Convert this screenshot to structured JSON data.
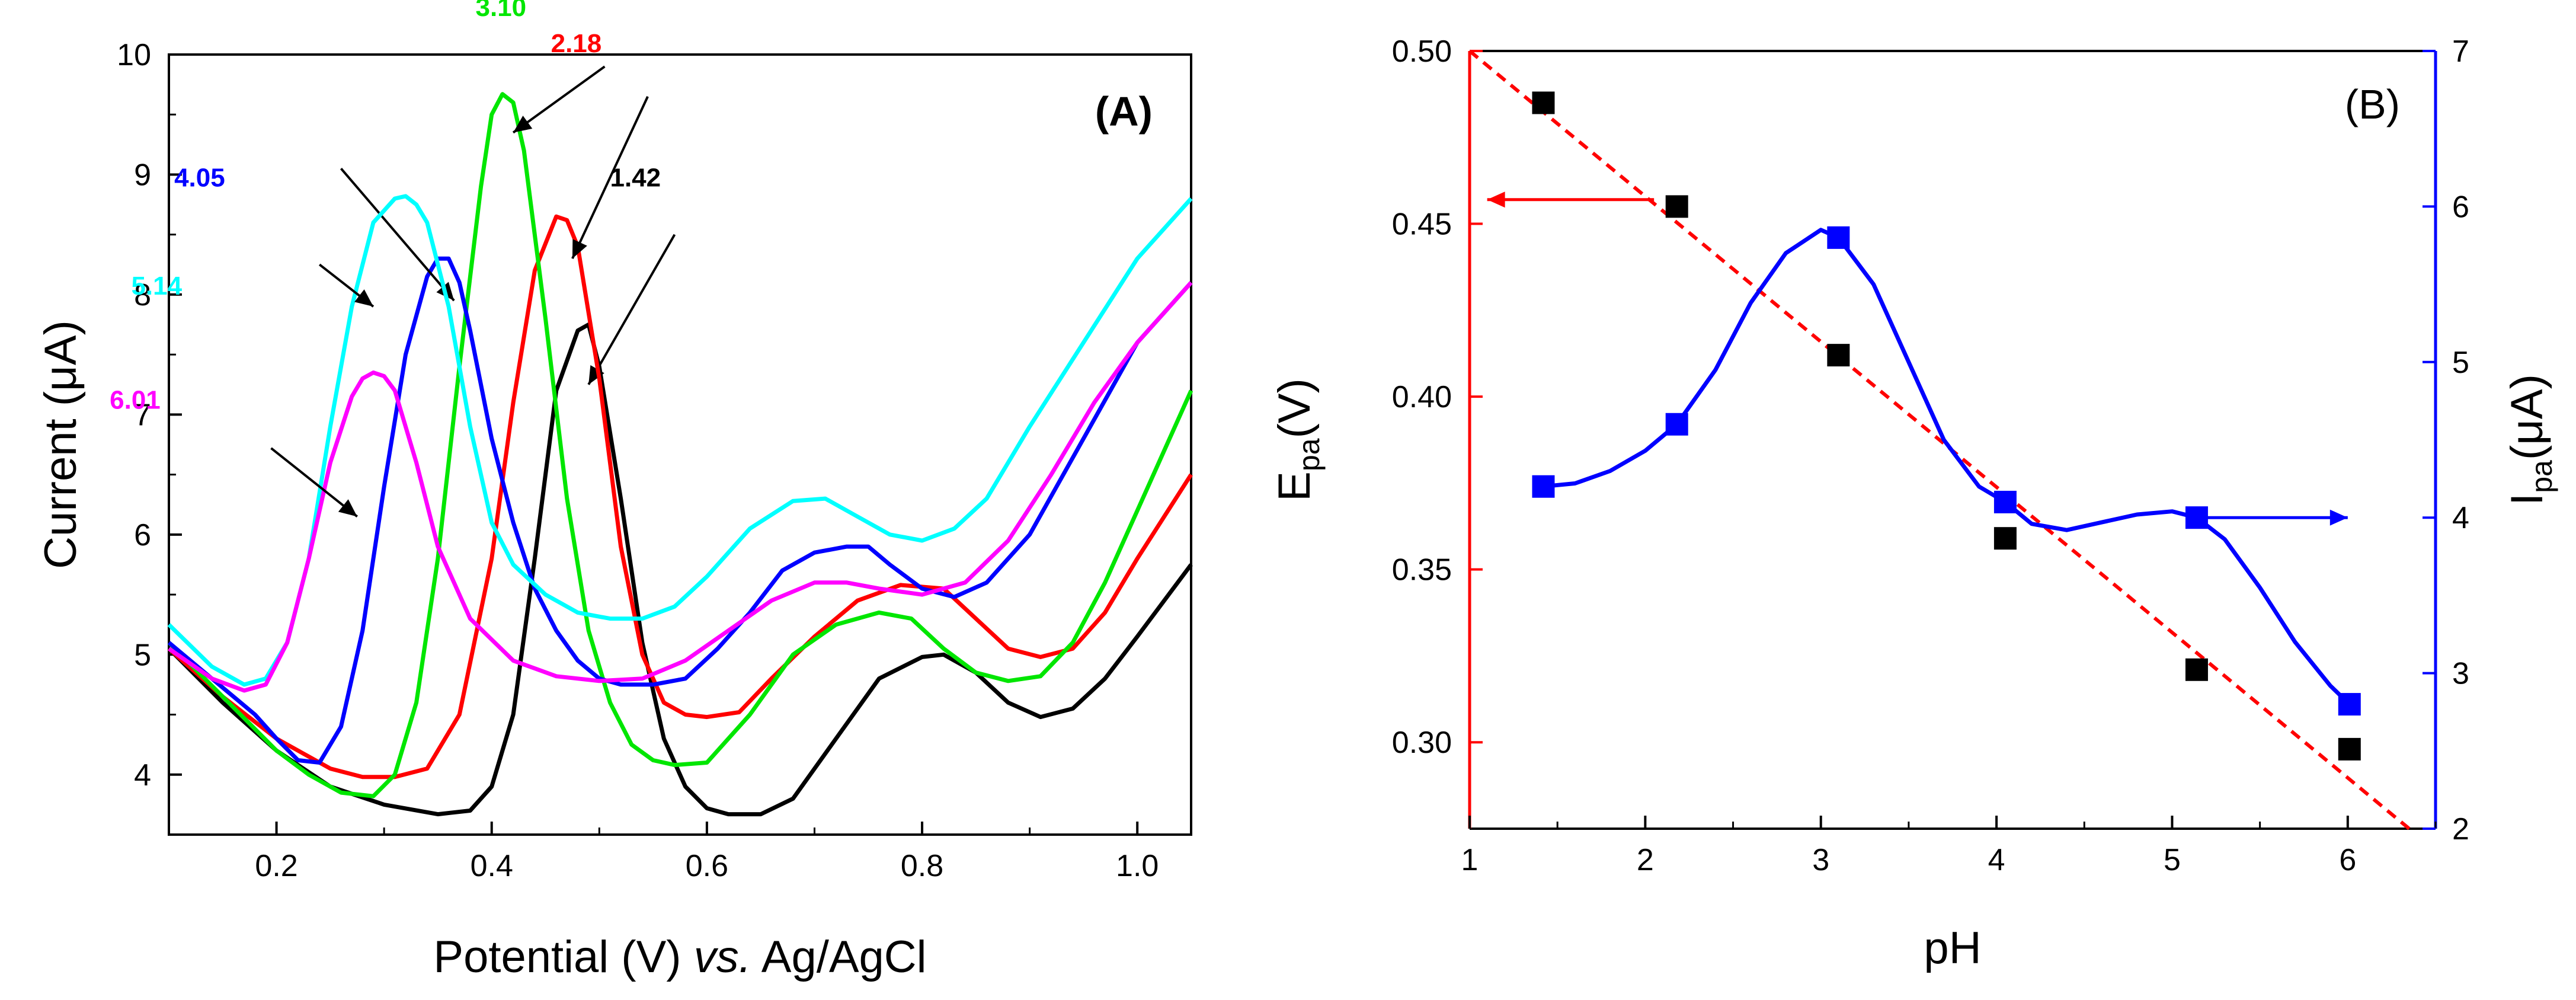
{
  "chart_data": [
    {
      "type": "line",
      "panel_label": "(A)",
      "xlabel_parts": [
        "Potential (V) ",
        "vs.",
        " Ag/AgCl"
      ],
      "ylabel": "Current (μA)",
      "xlim": [
        0.1,
        1.05
      ],
      "ylim": [
        3.5,
        10
      ],
      "xticks": [
        0.2,
        0.4,
        0.6,
        0.8,
        1.0
      ],
      "xtick_labels": [
        "0.2",
        "0.4",
        "0.6",
        "0.8",
        "1.0"
      ],
      "yticks": [
        4,
        5,
        6,
        7,
        8,
        9,
        10
      ],
      "ytick_labels": [
        "4",
        "5",
        "6",
        "7",
        "8",
        "9",
        "10"
      ],
      "series": [
        {
          "name": "1.42",
          "color": "#000000",
          "x": [
            0.1,
            0.15,
            0.2,
            0.25,
            0.3,
            0.35,
            0.38,
            0.4,
            0.42,
            0.44,
            0.46,
            0.48,
            0.49,
            0.5,
            0.52,
            0.54,
            0.56,
            0.58,
            0.6,
            0.62,
            0.65,
            0.68,
            0.72,
            0.76,
            0.8,
            0.82,
            0.85,
            0.88,
            0.91,
            0.94,
            0.97,
            1.0,
            1.05
          ],
          "y": [
            5.05,
            4.6,
            4.2,
            3.9,
            3.75,
            3.67,
            3.7,
            3.9,
            4.5,
            5.8,
            7.2,
            7.7,
            7.75,
            7.4,
            6.3,
            5.1,
            4.3,
            3.9,
            3.72,
            3.67,
            3.67,
            3.8,
            4.3,
            4.8,
            4.98,
            5.0,
            4.85,
            4.6,
            4.48,
            4.55,
            4.8,
            5.15,
            5.75
          ],
          "label_pos": [
            0.51,
            8.9
          ]
        },
        {
          "name": "2.18",
          "color": "#ff0000",
          "x": [
            0.1,
            0.15,
            0.2,
            0.25,
            0.28,
            0.31,
            0.34,
            0.37,
            0.4,
            0.42,
            0.44,
            0.46,
            0.47,
            0.48,
            0.5,
            0.52,
            0.54,
            0.56,
            0.58,
            0.6,
            0.63,
            0.66,
            0.7,
            0.74,
            0.78,
            0.82,
            0.85,
            0.88,
            0.91,
            0.94,
            0.97,
            1.0,
            1.05
          ],
          "y": [
            5.05,
            4.65,
            4.3,
            4.05,
            3.98,
            3.98,
            4.05,
            4.5,
            5.8,
            7.1,
            8.2,
            8.65,
            8.62,
            8.4,
            7.3,
            5.9,
            5.0,
            4.6,
            4.5,
            4.48,
            4.52,
            4.8,
            5.15,
            5.45,
            5.58,
            5.55,
            5.3,
            5.05,
            4.98,
            5.05,
            5.35,
            5.8,
            6.5
          ],
          "label_pos": [
            0.455,
            10.02
          ]
        },
        {
          "name": "3.10",
          "color": "#00e600",
          "x": [
            0.1,
            0.15,
            0.2,
            0.23,
            0.26,
            0.29,
            0.31,
            0.33,
            0.35,
            0.37,
            0.39,
            0.4,
            0.41,
            0.42,
            0.43,
            0.45,
            0.47,
            0.49,
            0.51,
            0.53,
            0.55,
            0.57,
            0.6,
            0.64,
            0.68,
            0.72,
            0.76,
            0.79,
            0.82,
            0.85,
            0.88,
            0.91,
            0.94,
            0.97,
            1.0,
            1.05
          ],
          "y": [
            5.1,
            4.65,
            4.2,
            4.0,
            3.85,
            3.82,
            4.0,
            4.6,
            5.8,
            7.4,
            8.9,
            9.5,
            9.67,
            9.6,
            9.2,
            7.8,
            6.3,
            5.2,
            4.6,
            4.25,
            4.12,
            4.08,
            4.1,
            4.5,
            5.0,
            5.25,
            5.35,
            5.3,
            5.05,
            4.85,
            4.78,
            4.82,
            5.1,
            5.6,
            6.2,
            7.2
          ],
          "label_pos": [
            0.385,
            10.32
          ]
        },
        {
          "name": "4.05",
          "color": "#0000ff",
          "x": [
            0.1,
            0.14,
            0.18,
            0.2,
            0.22,
            0.24,
            0.26,
            0.28,
            0.3,
            0.32,
            0.34,
            0.35,
            0.36,
            0.37,
            0.38,
            0.4,
            0.42,
            0.44,
            0.46,
            0.48,
            0.5,
            0.52,
            0.55,
            0.58,
            0.61,
            0.64,
            0.67,
            0.7,
            0.73,
            0.75,
            0.77,
            0.8,
            0.83,
            0.86,
            0.9,
            0.95,
            1.0,
            1.05
          ],
          "y": [
            5.1,
            4.8,
            4.5,
            4.3,
            4.12,
            4.1,
            4.4,
            5.2,
            6.4,
            7.5,
            8.15,
            8.3,
            8.3,
            8.1,
            7.7,
            6.8,
            6.1,
            5.55,
            5.2,
            4.95,
            4.8,
            4.75,
            4.75,
            4.8,
            5.05,
            5.35,
            5.7,
            5.85,
            5.9,
            5.9,
            5.75,
            5.55,
            5.48,
            5.6,
            6.0,
            6.8,
            7.6,
            8.1
          ],
          "label_pos": [
            0.105,
            8.9
          ]
        },
        {
          "name": "5.14",
          "color": "#00ffff",
          "x": [
            0.1,
            0.14,
            0.17,
            0.19,
            0.21,
            0.23,
            0.25,
            0.27,
            0.29,
            0.31,
            0.32,
            0.33,
            0.34,
            0.36,
            0.38,
            0.4,
            0.42,
            0.45,
            0.48,
            0.51,
            0.54,
            0.57,
            0.6,
            0.64,
            0.68,
            0.71,
            0.74,
            0.77,
            0.8,
            0.83,
            0.86,
            0.9,
            0.95,
            1.0,
            1.05
          ],
          "y": [
            5.25,
            4.9,
            4.75,
            4.8,
            5.1,
            5.8,
            6.9,
            7.9,
            8.6,
            8.8,
            8.82,
            8.75,
            8.6,
            7.9,
            6.9,
            6.1,
            5.75,
            5.5,
            5.35,
            5.3,
            5.3,
            5.4,
            5.65,
            6.05,
            6.28,
            6.3,
            6.15,
            6.0,
            5.95,
            6.05,
            6.3,
            6.9,
            7.6,
            8.3,
            8.8
          ],
          "label_pos": [
            0.065,
            8.0
          ]
        },
        {
          "name": "6.01",
          "color": "#ff00ff",
          "x": [
            0.1,
            0.14,
            0.17,
            0.19,
            0.21,
            0.23,
            0.25,
            0.27,
            0.28,
            0.29,
            0.3,
            0.31,
            0.33,
            0.35,
            0.38,
            0.42,
            0.46,
            0.5,
            0.54,
            0.58,
            0.62,
            0.66,
            0.7,
            0.73,
            0.76,
            0.8,
            0.84,
            0.88,
            0.92,
            0.96,
            1.0,
            1.05
          ],
          "y": [
            5.05,
            4.8,
            4.7,
            4.75,
            5.1,
            5.8,
            6.6,
            7.15,
            7.3,
            7.35,
            7.32,
            7.2,
            6.6,
            5.9,
            5.3,
            4.95,
            4.82,
            4.78,
            4.8,
            4.95,
            5.2,
            5.45,
            5.6,
            5.6,
            5.55,
            5.5,
            5.6,
            5.95,
            6.5,
            7.1,
            7.6,
            8.1
          ],
          "label_pos": [
            0.045,
            7.05
          ]
        }
      ]
    },
    {
      "type": "scatter",
      "panel_label": "(B)",
      "xlabel": "pH",
      "ylabel_left_main": "E",
      "ylabel_left_sub": "pa",
      "ylabel_left_unit": "(V)",
      "ylabel_right_main": "I",
      "ylabel_right_sub": "pa",
      "ylabel_right_unit": "(μA)",
      "xlim": [
        1,
        6.5
      ],
      "ylim_left": [
        0.275,
        0.5
      ],
      "ylim_right": [
        2,
        7
      ],
      "xticks": [
        1,
        2,
        3,
        4,
        5,
        6
      ],
      "xtick_labels": [
        "1",
        "2",
        "3",
        "4",
        "5",
        "6"
      ],
      "yticks_left": [
        0.3,
        0.35,
        0.4,
        0.45,
        0.5
      ],
      "ytick_labels_left": [
        "0.30",
        "0.35",
        "0.40",
        "0.45",
        "0.50"
      ],
      "yticks_right": [
        2,
        3,
        4,
        5,
        6,
        7
      ],
      "ytick_labels_right": [
        "2",
        "3",
        "4",
        "5",
        "6",
        "7"
      ],
      "ph": [
        1.42,
        2.18,
        3.1,
        4.05,
        5.14,
        6.01
      ],
      "epa": [
        0.485,
        0.455,
        0.412,
        0.359,
        0.321,
        0.298
      ],
      "ipa": [
        4.2,
        4.6,
        5.8,
        4.1,
        4.0,
        2.8
      ],
      "fit_line": {
        "x": [
          1.0,
          6.35
        ],
        "y": [
          0.5,
          0.275
        ],
        "color": "#ff0000"
      },
      "ipa_curve": {
        "x": [
          1.42,
          1.6,
          1.8,
          2.0,
          2.18,
          2.4,
          2.6,
          2.8,
          3.0,
          3.1,
          3.3,
          3.5,
          3.7,
          3.9,
          4.05,
          4.2,
          4.4,
          4.6,
          4.8,
          5.0,
          5.14,
          5.3,
          5.5,
          5.7,
          5.9,
          6.01
        ],
        "y": [
          4.2,
          4.22,
          4.3,
          4.43,
          4.6,
          4.95,
          5.38,
          5.7,
          5.85,
          5.8,
          5.5,
          5.0,
          4.5,
          4.2,
          4.1,
          3.96,
          3.92,
          3.97,
          4.02,
          4.04,
          4.0,
          3.86,
          3.55,
          3.2,
          2.92,
          2.8
        ],
        "color": "#0000ff"
      },
      "colors": {
        "epa": "#ff0000",
        "ipa": "#0000ff",
        "markers_epa": "#000000"
      }
    }
  ]
}
